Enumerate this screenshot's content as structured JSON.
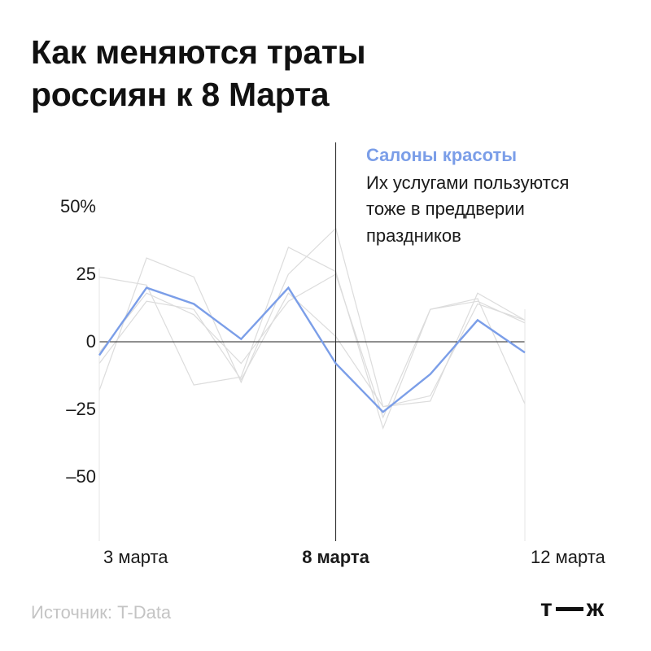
{
  "title": {
    "line1": "Как меняются траты",
    "line2": "россиян к 8 Марта"
  },
  "annotation": {
    "series_name": "Салоны красоты",
    "text_lines": [
      "Их услугами пользуются",
      "тоже в преддверии",
      "праздников"
    ]
  },
  "source": "Источник: T-Data",
  "logo": {
    "left": "т",
    "right": "ж"
  },
  "colors": {
    "highlight": "#7b9ee8",
    "background_series": "#dcdcdc",
    "axis": "#222222",
    "source_text": "#c4c4c4"
  },
  "chart_data": {
    "type": "line",
    "x": [
      "3 марта",
      "",
      "",
      "",
      "",
      "8 марта",
      "",
      "",
      "",
      "12 марта"
    ],
    "x_tick_labels": [
      {
        "index": 0,
        "label": "3 марта",
        "bold": false
      },
      {
        "index": 5,
        "label": "8 марта",
        "bold": true
      },
      {
        "index": 9,
        "label": "12 марта",
        "bold": false
      }
    ],
    "y_ticks": [
      {
        "value": 50,
        "label": "50%"
      },
      {
        "value": 25,
        "label": "25"
      },
      {
        "value": 0,
        "label": "0"
      },
      {
        "value": -25,
        "label": "–25"
      },
      {
        "value": -50,
        "label": "–50"
      }
    ],
    "ylim": [
      -50,
      50
    ],
    "grid": false,
    "highlight_series": {
      "name": "Салоны красоты",
      "values": [
        -5,
        20,
        14,
        1,
        20,
        -8,
        -26,
        -12,
        8,
        -4
      ]
    },
    "background_series": [
      {
        "values": [
          -18,
          31,
          24,
          -15,
          25,
          42,
          -24,
          -22,
          18,
          8
        ]
      },
      {
        "values": [
          24,
          21,
          -16,
          -13,
          35,
          26,
          -32,
          12,
          16,
          -23
        ]
      },
      {
        "values": [
          -4,
          18,
          10,
          -8,
          15,
          25,
          -28,
          12,
          15,
          7
        ]
      },
      {
        "values": [
          -8,
          15,
          12,
          -14,
          18,
          2,
          -24,
          -20,
          14,
          8
        ]
      }
    ]
  }
}
